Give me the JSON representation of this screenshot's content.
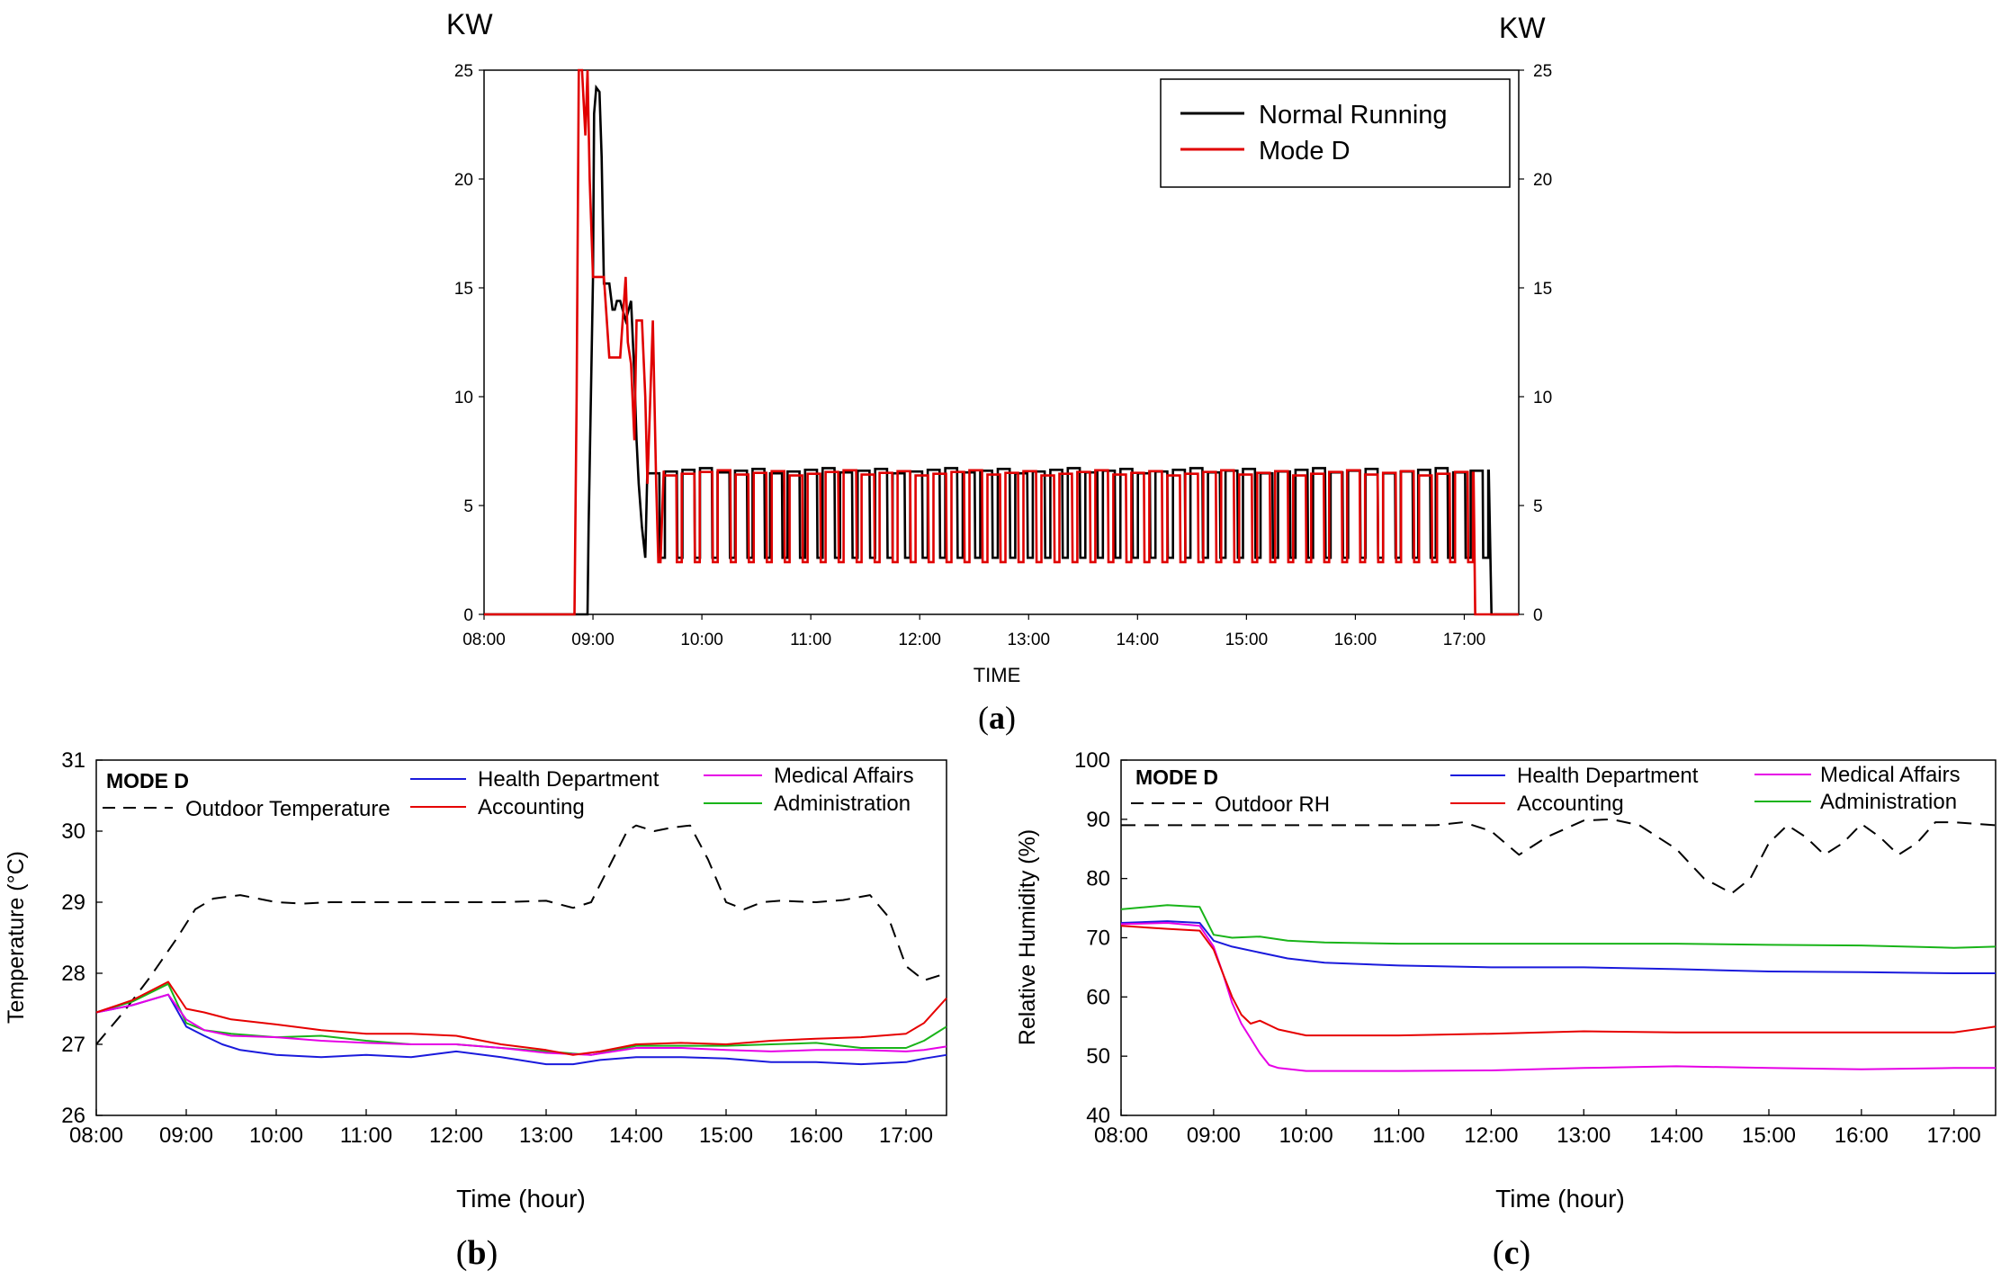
{
  "chart_data": [
    {
      "id": "a",
      "type": "line",
      "panel_label": "(a)",
      "panel_letter": "a",
      "ylabel_left": "KW",
      "ylabel_right": "KW",
      "xlabel": "TIME",
      "x_ticks": [
        "08:00",
        "09:00",
        "10:00",
        "11:00",
        "12:00",
        "13:00",
        "14:00",
        "15:00",
        "16:00",
        "17:00"
      ],
      "xlim": [
        8.0,
        17.5
      ],
      "ylim": [
        0,
        25
      ],
      "y_ticks": [
        0,
        5,
        10,
        15,
        20,
        25
      ],
      "legend": "top-right",
      "series": [
        {
          "name": "Normal Running",
          "color": "#000000",
          "x": [
            8.0,
            8.95,
            8.96,
            9.0,
            9.01,
            9.03,
            9.06,
            9.08,
            9.1,
            9.15,
            9.18,
            9.2,
            9.22,
            9.25,
            9.3,
            9.35,
            9.38,
            9.4,
            9.42,
            9.45,
            9.48,
            9.5
          ],
          "y": [
            0,
            0,
            4,
            15.5,
            23,
            24.2,
            24,
            21,
            15.2,
            15.2,
            14,
            14,
            14.4,
            14.4,
            13.5,
            14.4,
            11,
            8,
            6,
            4,
            2.6,
            6.8
          ]
        },
        {
          "name": "Mode D",
          "color": "#e00000",
          "x": [
            8.0,
            8.83,
            8.85,
            8.87,
            8.9,
            8.93,
            8.95,
            8.97,
            9.0,
            9.02,
            9.05,
            9.1,
            9.15,
            9.2,
            9.25,
            9.3,
            9.32,
            9.35,
            9.38,
            9.4,
            9.45,
            9.48,
            9.5,
            9.55,
            9.58,
            9.6,
            9.62,
            9.65
          ],
          "y": [
            0,
            0,
            10,
            25,
            25,
            22,
            25,
            20,
            15.5,
            15.5,
            15.5,
            15.5,
            11.8,
            11.8,
            11.8,
            15.5,
            12.5,
            11.5,
            8,
            13.5,
            13.5,
            10,
            6,
            13.5,
            6,
            2.4,
            2.4,
            6.6
          ]
        }
      ],
      "cycling": {
        "normal_running": {
          "start": 9.5,
          "end": 17.22,
          "high": 6.6,
          "low": 2.6,
          "cycles": 48,
          "duty": 0.68,
          "shutdown": 17.25
        },
        "mode_d": {
          "start": 9.65,
          "end": 17.08,
          "high": 6.5,
          "low": 2.4,
          "cycles": 45,
          "duty": 0.7,
          "shutdown": 17.1
        }
      }
    },
    {
      "id": "b",
      "type": "line",
      "panel_label": "(b)",
      "panel_letter": "b",
      "inset_title": "MODE D",
      "xlabel": "Time (hour)",
      "ylabel": "Temperature (°C)",
      "x_ticks": [
        "08:00",
        "09:00",
        "10:00",
        "11:00",
        "12:00",
        "13:00",
        "14:00",
        "15:00",
        "16:00",
        "17:00"
      ],
      "xlim": [
        8.0,
        17.45
      ],
      "ylim": [
        26,
        31
      ],
      "y_ticks": [
        26,
        27,
        28,
        29,
        30,
        31
      ],
      "legend": "top",
      "series": [
        {
          "name": "Outdoor Temperature",
          "color": "#000000",
          "dash": "dashed",
          "x": [
            8.0,
            8.3,
            8.6,
            8.9,
            9.1,
            9.3,
            9.6,
            10.0,
            10.3,
            10.6,
            11.0,
            11.5,
            12.0,
            12.5,
            13.0,
            13.3,
            13.5,
            13.7,
            13.9,
            14.0,
            14.2,
            14.4,
            14.6,
            14.8,
            15.0,
            15.2,
            15.4,
            15.6,
            16.0,
            16.3,
            16.6,
            16.8,
            17.0,
            17.2,
            17.45
          ],
          "y": [
            27.0,
            27.45,
            27.95,
            28.5,
            28.9,
            29.05,
            29.1,
            29.0,
            28.98,
            29.0,
            29.0,
            29.0,
            29.0,
            29.0,
            29.02,
            28.92,
            29.0,
            29.5,
            30.0,
            30.08,
            30.0,
            30.05,
            30.08,
            29.6,
            29.0,
            28.9,
            29.0,
            29.02,
            29.0,
            29.03,
            29.1,
            28.8,
            28.1,
            27.9,
            28.0
          ]
        },
        {
          "name": "Health Department",
          "color": "#1a1adc",
          "x": [
            8.0,
            8.4,
            8.8,
            9.0,
            9.2,
            9.4,
            9.6,
            10.0,
            10.5,
            11.0,
            11.5,
            12.0,
            12.5,
            13.0,
            13.3,
            13.6,
            14.0,
            14.5,
            15.0,
            15.5,
            16.0,
            16.5,
            17.0,
            17.2,
            17.45
          ],
          "y": [
            27.45,
            27.55,
            27.7,
            27.25,
            27.12,
            27.0,
            26.92,
            26.85,
            26.82,
            26.85,
            26.82,
            26.9,
            26.82,
            26.72,
            26.72,
            26.78,
            26.82,
            26.82,
            26.8,
            26.75,
            26.75,
            26.72,
            26.75,
            26.8,
            26.85
          ]
        },
        {
          "name": "Accounting",
          "color": "#e60000",
          "x": [
            8.0,
            8.4,
            8.8,
            9.0,
            9.2,
            9.5,
            10.0,
            10.5,
            11.0,
            11.5,
            12.0,
            12.5,
            13.0,
            13.3,
            13.6,
            14.0,
            14.5,
            15.0,
            15.5,
            16.0,
            16.5,
            17.0,
            17.2,
            17.45
          ],
          "y": [
            27.45,
            27.62,
            27.88,
            27.5,
            27.45,
            27.35,
            27.28,
            27.2,
            27.15,
            27.15,
            27.12,
            27.0,
            26.92,
            26.85,
            26.9,
            27.0,
            27.02,
            27.0,
            27.05,
            27.08,
            27.1,
            27.15,
            27.3,
            27.65
          ]
        },
        {
          "name": "Medical Affairs",
          "color": "#e600e6",
          "x": [
            8.0,
            8.4,
            8.8,
            9.0,
            9.2,
            9.5,
            10.0,
            10.5,
            11.0,
            11.5,
            12.0,
            12.5,
            13.0,
            13.5,
            14.0,
            14.5,
            15.0,
            15.5,
            16.0,
            16.5,
            17.0,
            17.2,
            17.45
          ],
          "y": [
            27.45,
            27.55,
            27.7,
            27.35,
            27.2,
            27.12,
            27.1,
            27.05,
            27.02,
            27.0,
            27.0,
            26.95,
            26.88,
            26.85,
            26.95,
            26.95,
            26.92,
            26.9,
            26.92,
            26.92,
            26.9,
            26.92,
            26.97
          ]
        },
        {
          "name": "Administration",
          "color": "#19b419",
          "x": [
            8.0,
            8.4,
            8.8,
            9.0,
            9.2,
            9.5,
            10.0,
            10.5,
            11.0,
            11.5,
            12.0,
            12.5,
            13.0,
            13.5,
            14.0,
            14.5,
            15.0,
            15.5,
            16.0,
            16.5,
            17.0,
            17.2,
            17.45
          ],
          "y": [
            27.45,
            27.6,
            27.85,
            27.3,
            27.2,
            27.15,
            27.1,
            27.12,
            27.05,
            27.0,
            27.0,
            26.95,
            26.9,
            26.85,
            26.98,
            26.98,
            26.98,
            27.0,
            27.02,
            26.95,
            26.95,
            27.05,
            27.25
          ]
        }
      ]
    },
    {
      "id": "c",
      "type": "line",
      "panel_label": "(c)",
      "panel_letter": "c",
      "inset_title": "MODE D",
      "xlabel": "Time (hour)",
      "ylabel": "Relative Humidity (%)",
      "x_ticks": [
        "08:00",
        "09:00",
        "10:00",
        "11:00",
        "12:00",
        "13:00",
        "14:00",
        "15:00",
        "16:00",
        "17:00"
      ],
      "xlim": [
        8.0,
        17.45
      ],
      "ylim": [
        40,
        100
      ],
      "y_ticks": [
        40,
        50,
        60,
        70,
        80,
        90,
        100
      ],
      "legend": "top",
      "series": [
        {
          "name": "Outdoor RH",
          "color": "#000000",
          "dash": "dashed",
          "x": [
            8.0,
            9.0,
            10.0,
            11.0,
            11.4,
            11.7,
            12.0,
            12.3,
            12.6,
            13.0,
            13.3,
            13.6,
            14.0,
            14.3,
            14.6,
            14.8,
            15.0,
            15.2,
            15.4,
            15.6,
            15.8,
            16.0,
            16.2,
            16.4,
            16.6,
            16.8,
            17.0,
            17.45
          ],
          "y": [
            89,
            89,
            89,
            89,
            89,
            89.5,
            88,
            84,
            87,
            89.8,
            90,
            89,
            85,
            80,
            77.5,
            80,
            86,
            89,
            87,
            84,
            86,
            89.2,
            87,
            84,
            86,
            89.5,
            89.5,
            89
          ]
        },
        {
          "name": "Health Department",
          "color": "#1a1adc",
          "x": [
            8.0,
            8.5,
            8.85,
            9.0,
            9.2,
            9.5,
            9.8,
            10.2,
            11.0,
            12.0,
            13.0,
            14.0,
            15.0,
            16.0,
            17.0,
            17.45
          ],
          "y": [
            72.5,
            72.8,
            72.5,
            69.5,
            68.5,
            67.5,
            66.5,
            65.8,
            65.3,
            65,
            65,
            64.7,
            64.3,
            64.2,
            64,
            64
          ]
        },
        {
          "name": "Accounting",
          "color": "#e60000",
          "x": [
            8.0,
            8.5,
            8.85,
            9.0,
            9.1,
            9.2,
            9.3,
            9.4,
            9.5,
            9.7,
            10.0,
            11.0,
            12.0,
            13.0,
            14.0,
            15.0,
            16.0,
            17.0,
            17.45
          ],
          "y": [
            72,
            71.5,
            71.2,
            68,
            64,
            60,
            57,
            55.5,
            56,
            54.5,
            53.5,
            53.5,
            53.8,
            54.2,
            54,
            54,
            54,
            54,
            55
          ]
        },
        {
          "name": "Medical Affairs",
          "color": "#e600e6",
          "x": [
            8.0,
            8.5,
            8.85,
            9.0,
            9.1,
            9.2,
            9.3,
            9.4,
            9.5,
            9.6,
            9.7,
            10.0,
            11.0,
            12.0,
            13.0,
            14.0,
            15.0,
            16.0,
            17.0,
            17.45
          ],
          "y": [
            72.3,
            72.5,
            72,
            68.5,
            64,
            59,
            55.5,
            53,
            50.5,
            48.5,
            48,
            47.5,
            47.5,
            47.6,
            48,
            48.3,
            48,
            47.8,
            48,
            48
          ]
        },
        {
          "name": "Administration",
          "color": "#19b419",
          "x": [
            8.0,
            8.5,
            8.85,
            9.0,
            9.2,
            9.5,
            9.8,
            10.2,
            11.0,
            12.0,
            13.0,
            14.0,
            15.0,
            16.0,
            17.0,
            17.45
          ],
          "y": [
            74.8,
            75.5,
            75.2,
            70.5,
            70,
            70.2,
            69.5,
            69.2,
            69,
            69,
            69,
            69,
            68.8,
            68.7,
            68.3,
            68.5
          ]
        }
      ]
    }
  ]
}
